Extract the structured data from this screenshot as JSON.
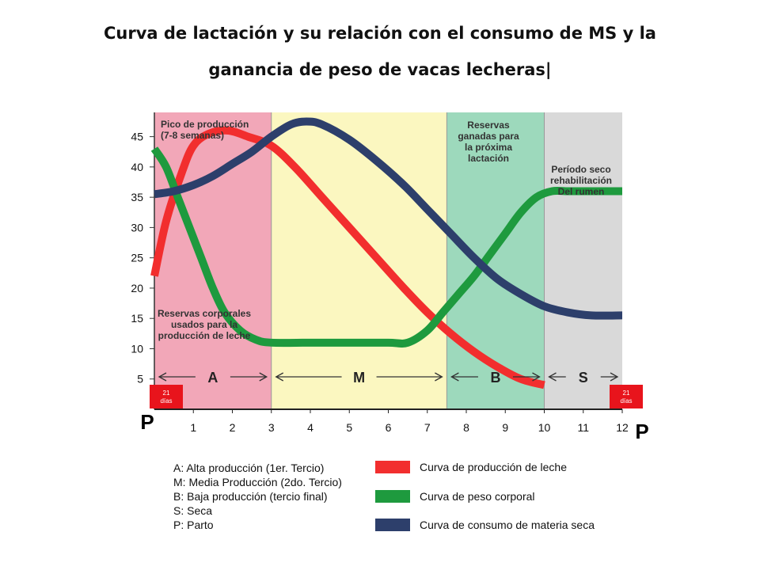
{
  "title": {
    "line1": "Curva de lactación y su relación con el consumo de MS y la",
    "line2": "ganancia de peso de vacas lecheras|"
  },
  "chart_data": {
    "type": "line",
    "x_ticks": [
      "1",
      "2",
      "3",
      "4",
      "5",
      "6",
      "7",
      "8",
      "9",
      "10",
      "11",
      "12"
    ],
    "y_ticks": [
      5,
      10,
      15,
      20,
      25,
      30,
      35,
      40,
      45
    ],
    "xlim": [
      0.0,
      12.0
    ],
    "ylim": [
      0,
      49
    ],
    "start_label": "P",
    "end_label": "P",
    "phases": [
      {
        "code": "A",
        "from": 0.0,
        "to": 3.0,
        "color": "#f2a7b8"
      },
      {
        "code": "M",
        "from": 3.0,
        "to": 7.5,
        "color": "#fbf7c0"
      },
      {
        "code": "B",
        "from": 7.5,
        "to": 10.0,
        "color": "#9dd9bc"
      },
      {
        "code": "S",
        "from": 10.0,
        "to": 12.0,
        "color": "#d9d9d9"
      }
    ],
    "annotations": {
      "pico": [
        "Pico de producción",
        "(7-8 semanas)"
      ],
      "reservas_corporales": [
        "Reservas corporales",
        "usados para la",
        "producción de leche"
      ],
      "reservas_ganadas": [
        "Reservas",
        "ganadas para",
        "la próxima",
        "lactación"
      ],
      "periodo_seco": [
        "Período seco",
        "rehabilitación",
        "Del rumen"
      ],
      "dias_left": [
        "21",
        "días"
      ],
      "dias_right": [
        "21",
        "días"
      ]
    },
    "series": [
      {
        "name": "Curva de producción de leche",
        "color": "#f22e2e",
        "x": [
          0.0,
          0.3,
          0.7,
          1.0,
          1.4,
          1.9,
          2.4,
          3.0,
          3.6,
          4.3,
          5.0,
          5.7,
          6.4,
          7.0,
          7.6,
          8.2,
          8.8,
          9.4,
          10.0
        ],
        "y": [
          22,
          31,
          39,
          43.5,
          45.5,
          46,
          45,
          43.5,
          40,
          35,
          30,
          25,
          20,
          16,
          12.5,
          9.5,
          7,
          5,
          4
        ]
      },
      {
        "name": "Curva de peso corporal",
        "color": "#1e9a3e",
        "x": [
          0.0,
          0.3,
          0.6,
          0.9,
          1.2,
          1.5,
          1.8,
          2.2,
          2.6,
          3.0,
          4.0,
          5.0,
          6.0,
          6.5,
          7.0,
          7.4,
          7.8,
          8.2,
          8.6,
          9.0,
          9.4,
          9.8,
          10.2,
          10.6,
          11.0,
          11.5,
          12.0
        ],
        "y": [
          43,
          40,
          35,
          30,
          25,
          20,
          16,
          13,
          11.5,
          11,
          11,
          11,
          11,
          11,
          13,
          16,
          19,
          22,
          25.5,
          29,
          32.5,
          35,
          36,
          36,
          36,
          36,
          36
        ]
      },
      {
        "name": "Curva de consumo de materia seca",
        "color": "#2d3f6b",
        "x": [
          0.0,
          0.5,
          1.0,
          1.5,
          2.0,
          2.5,
          3.0,
          3.5,
          3.9,
          4.3,
          5.0,
          5.7,
          6.4,
          7.0,
          7.6,
          8.2,
          8.8,
          9.4,
          10.0,
          10.6,
          11.2,
          12.0
        ],
        "y": [
          35.5,
          36,
          37,
          38.5,
          40.5,
          42.5,
          45,
          47,
          47.5,
          47,
          44.5,
          41,
          37,
          33,
          29,
          25,
          21.5,
          19,
          17,
          16,
          15.5,
          15.5
        ]
      }
    ]
  },
  "legend": {
    "abbreviations": [
      "A: Alta producción (1er. Tercio)",
      "M: Media Producción (2do. Tercio)",
      "B: Baja producción (tercio final)",
      "S: Seca",
      "P: Parto"
    ]
  }
}
